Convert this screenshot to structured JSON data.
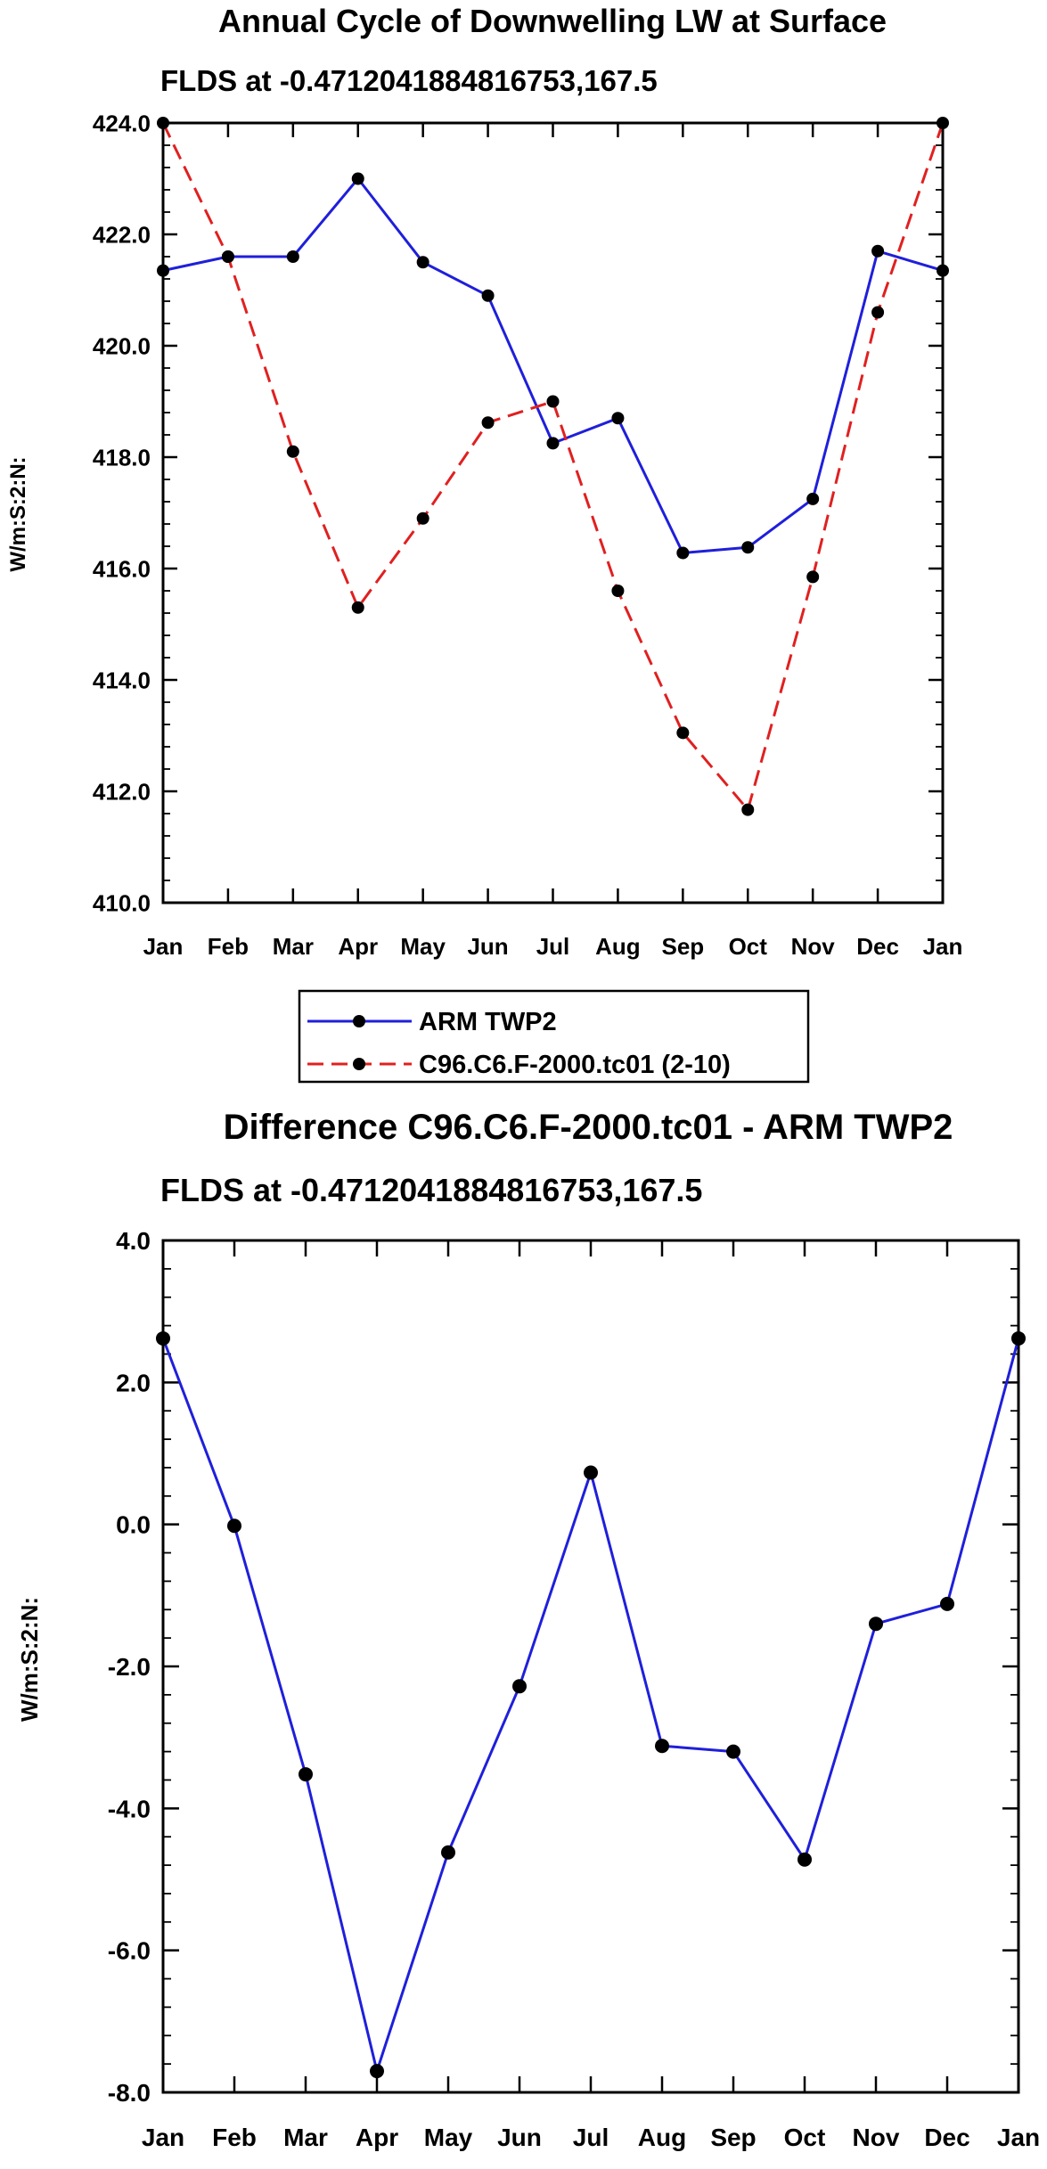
{
  "chart_data": [
    {
      "type": "line",
      "title": "Annual Cycle of Downwelling LW at Surface",
      "subtitle": "FLDS at -0.4712041884816753,167.5",
      "xlabel": "",
      "ylabel": "W/m:S:2:N:",
      "categories": [
        "Jan",
        "Feb",
        "Mar",
        "Apr",
        "May",
        "Jun",
        "Jul",
        "Aug",
        "Sep",
        "Oct",
        "Nov",
        "Dec",
        "Jan"
      ],
      "ylim": [
        410.0,
        424.0
      ],
      "yticks": [
        "410.0",
        "412.0",
        "414.0",
        "416.0",
        "418.0",
        "420.0",
        "422.0",
        "424.0"
      ],
      "grid": false,
      "legend_position": "below",
      "series": [
        {
          "name": "ARM TWP2",
          "color": "#1f1fdb",
          "dash": "solid",
          "values": [
            421.35,
            421.6,
            421.6,
            423.0,
            421.5,
            420.9,
            418.25,
            418.7,
            416.28,
            416.38,
            417.25,
            421.7,
            421.35
          ]
        },
        {
          "name": "C96.C6.F-2000.tc01 (2-10)",
          "color": "#e02020",
          "dash": "dashed",
          "values": [
            424.0,
            421.6,
            418.1,
            415.3,
            416.9,
            418.62,
            419.0,
            415.6,
            413.05,
            411.67,
            415.85,
            420.6,
            424.0
          ]
        }
      ]
    },
    {
      "type": "line",
      "title": "Difference C96.C6.F-2000.tc01 - ARM TWP2",
      "subtitle": "FLDS at -0.4712041884816753,167.5",
      "xlabel": "",
      "ylabel": "W/m:S:2:N:",
      "categories": [
        "Jan",
        "Feb",
        "Mar",
        "Apr",
        "May",
        "Jun",
        "Jul",
        "Aug",
        "Sep",
        "Oct",
        "Nov",
        "Dec",
        "Jan"
      ],
      "ylim": [
        -8.0,
        4.0
      ],
      "yticks": [
        "-8.0",
        "-6.0",
        "-4.0",
        "-2.0",
        "0.0",
        "2.0",
        "4.0"
      ],
      "grid": false,
      "series": [
        {
          "name": "Difference",
          "color": "#1f1fdb",
          "dash": "solid",
          "values": [
            2.62,
            -0.02,
            -3.52,
            -7.7,
            -4.62,
            -2.28,
            0.73,
            -3.12,
            -3.2,
            -4.72,
            -1.4,
            -1.12,
            2.62
          ]
        }
      ]
    }
  ]
}
